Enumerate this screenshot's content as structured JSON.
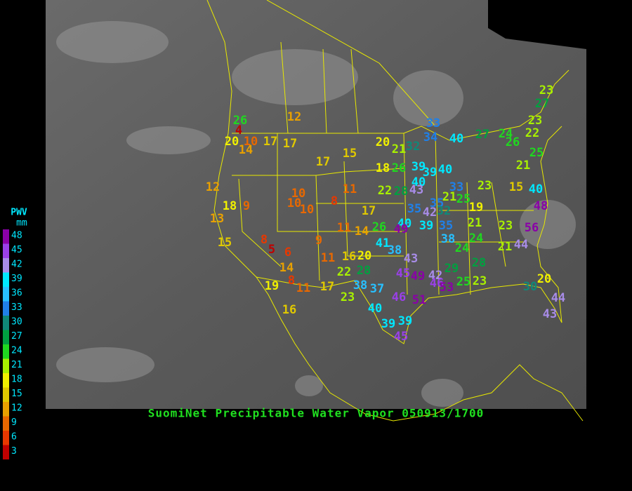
{
  "title": "SuomiNet Precipitable Water Vapor 050913/1700",
  "legend": {
    "title": "PWV",
    "unit": "mm",
    "ticks": [
      48,
      45,
      42,
      39,
      36,
      33,
      30,
      27,
      24,
      21,
      18,
      15,
      12,
      9,
      6,
      3
    ],
    "colors": [
      "#8a00a8",
      "#9a40e8",
      "#a88ce8",
      "#00e8ff",
      "#28c0ff",
      "#2080e8",
      "#108878",
      "#00a040",
      "#20d820",
      "#a8f000",
      "#f0f000",
      "#e0c800",
      "#e8a000",
      "#e86800",
      "#e83800",
      "#c00000"
    ]
  },
  "stations": [
    26,
    4,
    20,
    10,
    17,
    14,
    17,
    12,
    17,
    15,
    20,
    21,
    32,
    33,
    34,
    40,
    27,
    24,
    26,
    23,
    27,
    23,
    22,
    25,
    21,
    40,
    15,
    48,
    56,
    44,
    21,
    23,
    21,
    24,
    24,
    28,
    19,
    25,
    21,
    33,
    23,
    18,
    26,
    39,
    39,
    40,
    40,
    43,
    28,
    22,
    11,
    8,
    10,
    10,
    10,
    17,
    35,
    42,
    35,
    32,
    39,
    35,
    38,
    40,
    49,
    26,
    14,
    11,
    9,
    8,
    5,
    6,
    14,
    8,
    11,
    17,
    11,
    16,
    20,
    22,
    28,
    41,
    38,
    43,
    45,
    49,
    42,
    46,
    53,
    29,
    25,
    23,
    38,
    37,
    23,
    46,
    51,
    40,
    39,
    39,
    45,
    12,
    18,
    9,
    13,
    15,
    19,
    16,
    20,
    30,
    44,
    43
  ]
}
